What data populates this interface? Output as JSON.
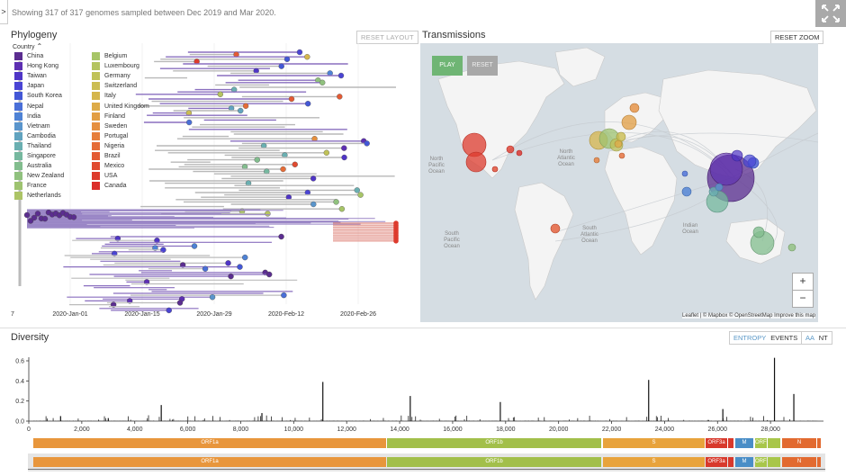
{
  "summary": "Showing 317 of 317 genomes sampled between Dec 2019 and Mar 2020.",
  "sidebar_toggle": ">",
  "phylogeny": {
    "title": "Phylogeny",
    "reset_layout": "RESET LAYOUT",
    "legend_title": "Country",
    "legend_left": [
      {
        "label": "China",
        "color": "#5b2d90"
      },
      {
        "label": "Hong Kong",
        "color": "#5d2fb2"
      },
      {
        "label": "Taiwan",
        "color": "#4f35c6"
      },
      {
        "label": "Japan",
        "color": "#4a44d4"
      },
      {
        "label": "South Korea",
        "color": "#4357d6"
      },
      {
        "label": "Nepal",
        "color": "#4a6fd8"
      },
      {
        "label": "India",
        "color": "#4e82d5"
      },
      {
        "label": "Vietnam",
        "color": "#5a95cc"
      },
      {
        "label": "Cambodia",
        "color": "#61a3bf"
      },
      {
        "label": "Thailand",
        "color": "#6aafb1"
      },
      {
        "label": "Singapore",
        "color": "#76b89f"
      },
      {
        "label": "Australia",
        "color": "#82bd8e"
      },
      {
        "label": "New Zealand",
        "color": "#90c17e"
      },
      {
        "label": "France",
        "color": "#9ec370"
      },
      {
        "label": "Netherlands",
        "color": "#acc466"
      }
    ],
    "legend_right": [
      {
        "label": "Belgium",
        "color": "#a7c567"
      },
      {
        "label": "Luxembourg",
        "color": "#b4c45f"
      },
      {
        "label": "Germany",
        "color": "#c0c258"
      },
      {
        "label": "Switzerland",
        "color": "#cbbd52"
      },
      {
        "label": "Italy",
        "color": "#d5b64d"
      },
      {
        "label": "United Kingdom",
        "color": "#ddab48"
      },
      {
        "label": "Finland",
        "color": "#e29e43"
      },
      {
        "label": "Sweden",
        "color": "#e58f3f"
      },
      {
        "label": "Portugal",
        "color": "#e67e3b"
      },
      {
        "label": "Nigeria",
        "color": "#e56c37"
      },
      {
        "label": "Brazil",
        "color": "#e35a33"
      },
      {
        "label": "Mexico",
        "color": "#e04a30"
      },
      {
        "label": "USA",
        "color": "#dd3b2d"
      },
      {
        "label": "Canada",
        "color": "#db2e2b"
      }
    ],
    "axis_labels": [
      "7",
      "2020-Jan-01",
      "2020-Jan-15",
      "2020-Jan-29",
      "2020-Feb-12",
      "2020-Feb-26"
    ]
  },
  "transmissions": {
    "title": "Transmissions",
    "reset_zoom": "RESET ZOOM",
    "play": "PLAY",
    "reset": "RESET",
    "zoom_in": "+",
    "zoom_out": "−",
    "labels": {
      "north_atlantic": [
        "North",
        "Atlantic",
        "Ocean"
      ],
      "north_pacific": [
        "North",
        "Pacific",
        "Ocean"
      ],
      "south_pacific": [
        "South",
        "Pacific",
        "Ocean"
      ],
      "south_atlantic": [
        "South",
        "Atlantic",
        "Ocean"
      ],
      "indian": [
        "Indian",
        "Ocean"
      ]
    },
    "attribution": "Leaflet | © Mapbox © OpenStreetMap Improve this map"
  },
  "diversity": {
    "title": "Diversity",
    "entropy": "ENTROPY",
    "events": "EVENTS",
    "aa": "AA",
    "nt": "NT",
    "y_ticks": [
      "0.6",
      "0.4",
      "0.2",
      "0.0"
    ],
    "x_ticks": [
      "0",
      "2,000",
      "4,000",
      "6,000",
      "8,000",
      "10,000",
      "12,000",
      "14,000",
      "16,000",
      "18,000",
      "20,000",
      "22,000",
      "24,000",
      "26,000",
      "28,000"
    ],
    "genes": [
      {
        "label": "ORF1a",
        "color": "#e8963c"
      },
      {
        "label": "ORF1b",
        "color": "#a2bf4a"
      },
      {
        "label": "S",
        "color": "#e8a33c"
      },
      {
        "label": "ORF3a",
        "color": "#d8392c"
      },
      {
        "label": "M",
        "color": "#4a8ec7"
      },
      {
        "label": "ORF8",
        "color": "#a8c64a"
      },
      {
        "label": "N",
        "color": "#e26a30"
      }
    ]
  }
}
